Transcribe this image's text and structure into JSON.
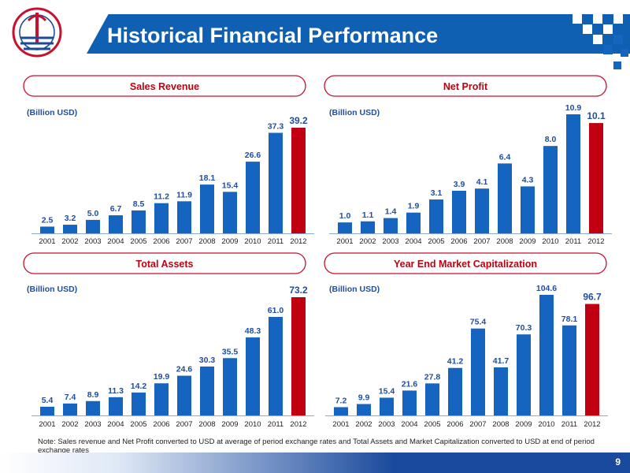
{
  "header": {
    "title": "Historical Financial Performance"
  },
  "note": "Note: Sales revenue and Net Profit converted to USD at average of period exchange rates and Total Assets and Market Capitalization converted to USD at end of period exchange rates",
  "page_number": "9",
  "colors": {
    "bar_blue": "#1565c0",
    "bar_red": "#c00010",
    "value_label": "#1f4e9e",
    "header_blue": "#0f5fb2",
    "title_red": "#c00010"
  },
  "chart_data": [
    {
      "type": "bar",
      "title": "Sales Revenue",
      "unit_label": "(Billion USD)",
      "categories": [
        "2001",
        "2002",
        "2003",
        "2004",
        "2005",
        "2006",
        "2007",
        "2008",
        "2009",
        "2010",
        "2011",
        "2012"
      ],
      "values": [
        2.5,
        3.2,
        5.0,
        6.7,
        8.5,
        11.2,
        11.9,
        18.1,
        15.4,
        26.6,
        37.3,
        39.2
      ],
      "value_labels": [
        "2.5",
        "3.2",
        "5.0",
        "6.7",
        "8.5",
        "11.2",
        "11.9",
        "18.1",
        "15.4",
        "26.6",
        "37.3",
        "39.2"
      ],
      "highlight_index": 11
    },
    {
      "type": "bar",
      "title": "Net Profit",
      "unit_label": "(Billion USD)",
      "categories": [
        "2001",
        "2002",
        "2003",
        "2004",
        "2005",
        "2006",
        "2007",
        "2008",
        "2009",
        "2010",
        "2011",
        "2012"
      ],
      "values": [
        1.0,
        1.1,
        1.4,
        1.9,
        3.1,
        3.9,
        4.1,
        6.4,
        4.3,
        8.0,
        10.9,
        10.1
      ],
      "value_labels": [
        "1.0",
        "1.1",
        "1.4",
        "1.9",
        "3.1",
        "3.9",
        "4.1",
        "6.4",
        "4.3",
        "8.0",
        "10.9",
        "10.1"
      ],
      "highlight_index": 11
    },
    {
      "type": "bar",
      "title": "Total Assets",
      "unit_label": "(Billion USD)",
      "categories": [
        "2001",
        "2002",
        "2003",
        "2004",
        "2005",
        "2006",
        "2007",
        "2008",
        "2009",
        "2010",
        "2011",
        "2012"
      ],
      "values": [
        5.4,
        7.4,
        8.9,
        11.3,
        14.2,
        19.9,
        24.6,
        30.3,
        35.5,
        48.3,
        61.0,
        73.2
      ],
      "value_labels": [
        "5.4",
        "7.4",
        "8.9",
        "11.3",
        "14.2",
        "19.9",
        "24.6",
        "30.3",
        "35.5",
        "48.3",
        "61.0",
        "73.2"
      ],
      "highlight_index": 11
    },
    {
      "type": "bar",
      "title": "Year End Market Capitalization",
      "unit_label": "(Billion USD)",
      "categories": [
        "2001",
        "2002",
        "2003",
        "2004",
        "2005",
        "2006",
        "2007",
        "2008",
        "2009",
        "2010",
        "2011",
        "2012"
      ],
      "values": [
        7.2,
        9.9,
        15.4,
        21.6,
        27.8,
        41.2,
        75.4,
        41.7,
        70.3,
        104.6,
        78.1,
        96.7
      ],
      "value_labels": [
        "7.2",
        "9.9",
        "15.4",
        "21.6",
        "27.8",
        "41.2",
        "75.4",
        "41.7",
        "70.3",
        "104.6",
        "78.1",
        "96.7"
      ],
      "highlight_index": 11
    }
  ]
}
